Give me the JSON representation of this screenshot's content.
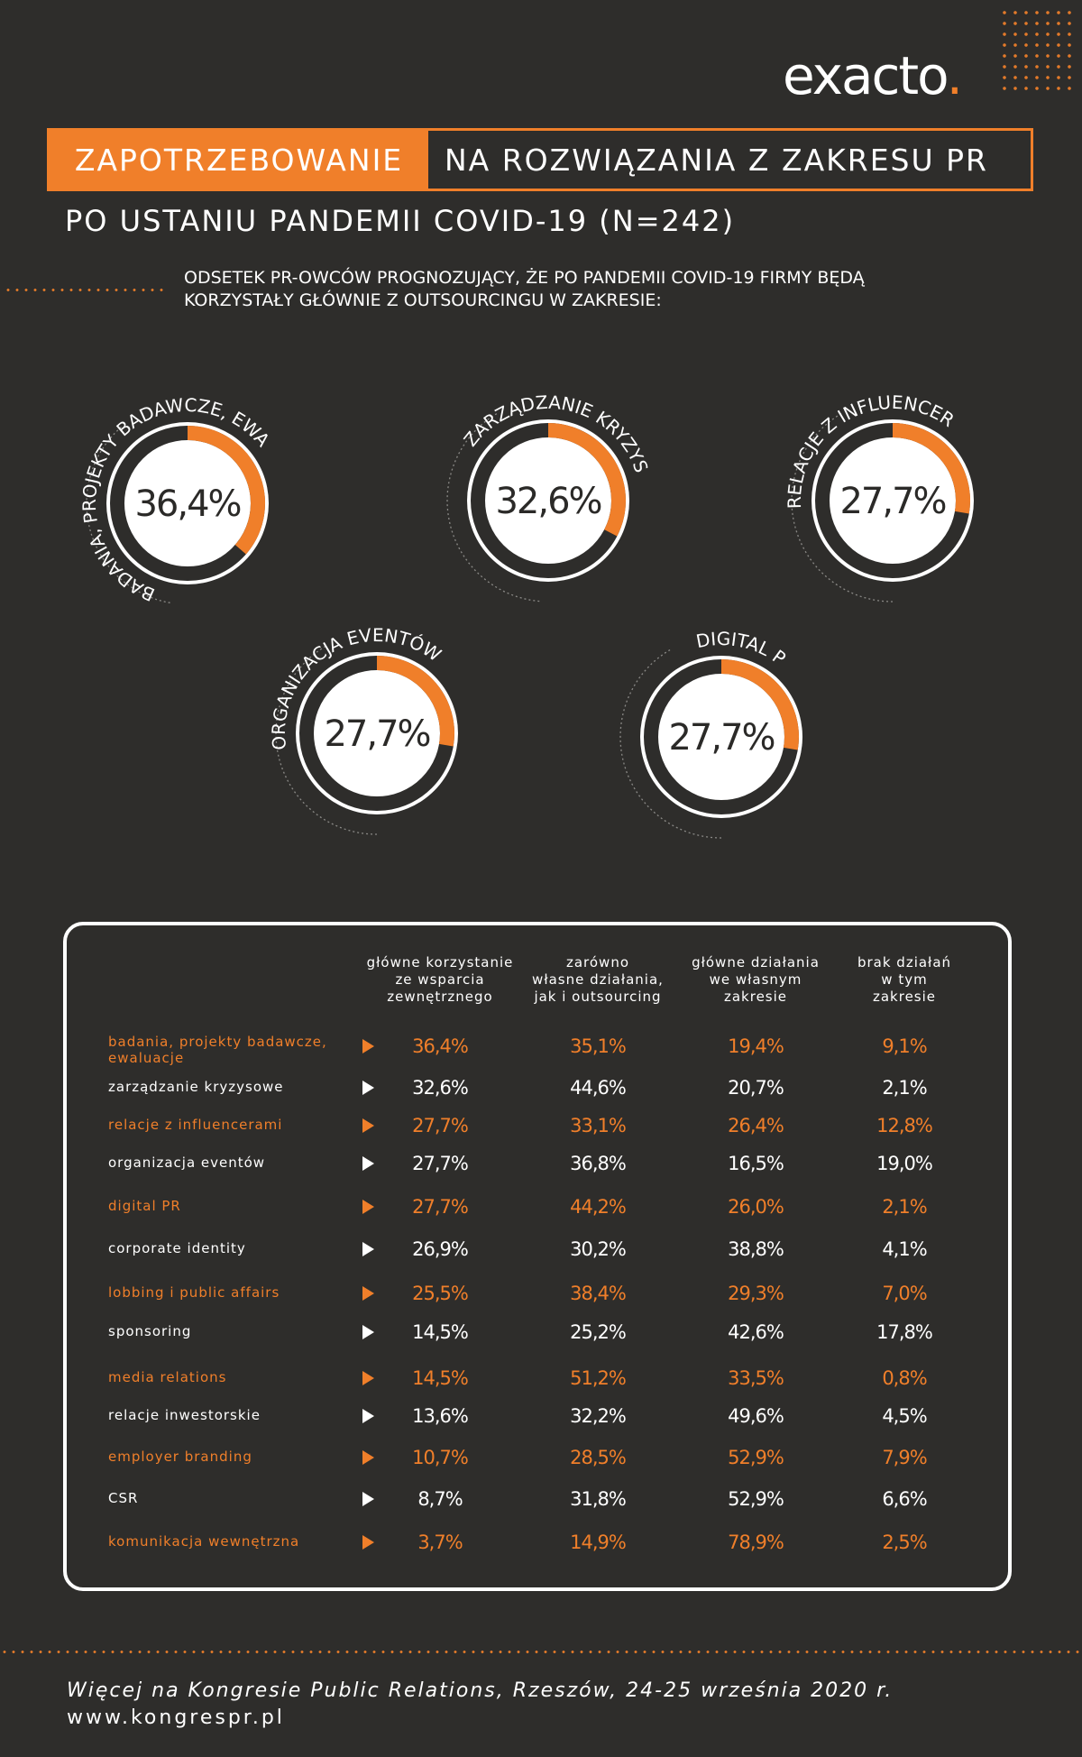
{
  "brand": {
    "name": "exacto",
    "dot": ".",
    "accent": "#f07f2a",
    "background": "#2e2d2b"
  },
  "header": {
    "title_highlight": "ZAPOTRZEBOWANIE",
    "title_rest": "NA ROZWIĄZANIA Z ZAKRESU PR",
    "subtitle": "PO USTANIU PANDEMII COVID-19 (N=242)",
    "intro_line1": "ODSETEK PR-OWCÓW PROGNOZUJĄCY, ŻE PO PANDEMII COVID-19 FIRMY BĘDĄ",
    "intro_line2": "KORZYSTAŁY GŁÓWNIE Z OUTSOURCINGU W ZAKRESIE:"
  },
  "chart_data": [
    {
      "type": "pie",
      "title": "ODSETEK PR-OWCÓW PROGNOZUJĄCY, ŻE PO PANDEMII COVID-19 FIRMY BĘDĄ KORZYSTAŁY GŁÓWNIE Z OUTSOURCINGU W ZAKRESIE:",
      "items": [
        {
          "label": "BADANIA, PROJEKTY BADAWCZE, EWALUACJE",
          "value": 36.4,
          "display": "36,4%"
        },
        {
          "label": "ZARZĄDZANIE KRYZYSOWE",
          "value": 32.6,
          "display": "32,6%"
        },
        {
          "label": "RELACJE Z INFLUENCERAMI",
          "value": 27.7,
          "display": "27,7%"
        },
        {
          "label": "ORGANIZACJA EVENTÓW",
          "value": 27.7,
          "display": "27,7%"
        },
        {
          "label": "DIGITAL PR",
          "value": 27.7,
          "display": "27,7%"
        }
      ]
    },
    {
      "type": "table",
      "columns": [
        "główne korzystanie ze wsparcia zewnętrznego",
        "zarówno własne działania, jak i outsourcing",
        "główne działania we własnym zakresie",
        "brak działań w tym zakresie"
      ],
      "rows": [
        {
          "label": "badania, projekty badawcze, ewaluacje",
          "values": [
            "36,4%",
            "35,1%",
            "19,4%",
            "9,1%"
          ],
          "highlight": true
        },
        {
          "label": "zarządzanie kryzysowe",
          "values": [
            "32,6%",
            "44,6%",
            "20,7%",
            "2,1%"
          ],
          "highlight": false
        },
        {
          "label": "relacje z influencerami",
          "values": [
            "27,7%",
            "33,1%",
            "26,4%",
            "12,8%"
          ],
          "highlight": true
        },
        {
          "label": "organizacja eventów",
          "values": [
            "27,7%",
            "36,8%",
            "16,5%",
            "19,0%"
          ],
          "highlight": false
        },
        {
          "label": "digital PR",
          "values": [
            "27,7%",
            "44,2%",
            "26,0%",
            "2,1%"
          ],
          "highlight": true
        },
        {
          "label": "corporate identity",
          "values": [
            "26,9%",
            "30,2%",
            "38,8%",
            "4,1%"
          ],
          "highlight": false
        },
        {
          "label": "lobbing i public affairs",
          "values": [
            "25,5%",
            "38,4%",
            "29,3%",
            "7,0%"
          ],
          "highlight": true
        },
        {
          "label": "sponsoring",
          "values": [
            "14,5%",
            "25,2%",
            "42,6%",
            "17,8%"
          ],
          "highlight": false
        },
        {
          "label": "media relations",
          "values": [
            "14,5%",
            "51,2%",
            "33,5%",
            "0,8%"
          ],
          "highlight": true
        },
        {
          "label": "relacje inwestorskie",
          "values": [
            "13,6%",
            "32,2%",
            "49,6%",
            "4,5%"
          ],
          "highlight": false
        },
        {
          "label": "employer branding",
          "values": [
            "10,7%",
            "28,5%",
            "52,9%",
            "7,9%"
          ],
          "highlight": true
        },
        {
          "label": "CSR",
          "values": [
            "8,7%",
            "31,8%",
            "52,9%",
            "6,6%"
          ],
          "highlight": false
        },
        {
          "label": "komunikacja wewnętrzna",
          "values": [
            "3,7%",
            "14,9%",
            "78,9%",
            "2,5%"
          ],
          "highlight": true
        }
      ]
    }
  ],
  "table_headers": [
    [
      "główne korzystanie",
      "ze wsparcia",
      "zewnętrznego"
    ],
    [
      "zarówno",
      "własne działania,",
      "jak i outsourcing"
    ],
    [
      "główne działania",
      "we własnym",
      "zakresie"
    ],
    [
      "brak działań",
      "w tym",
      "zakresie"
    ]
  ],
  "footer": {
    "line1": "Więcej na Kongresie Public Relations, Rzeszów, 24-25 września 2020 r.",
    "line2": "www.kongrespr.pl"
  }
}
